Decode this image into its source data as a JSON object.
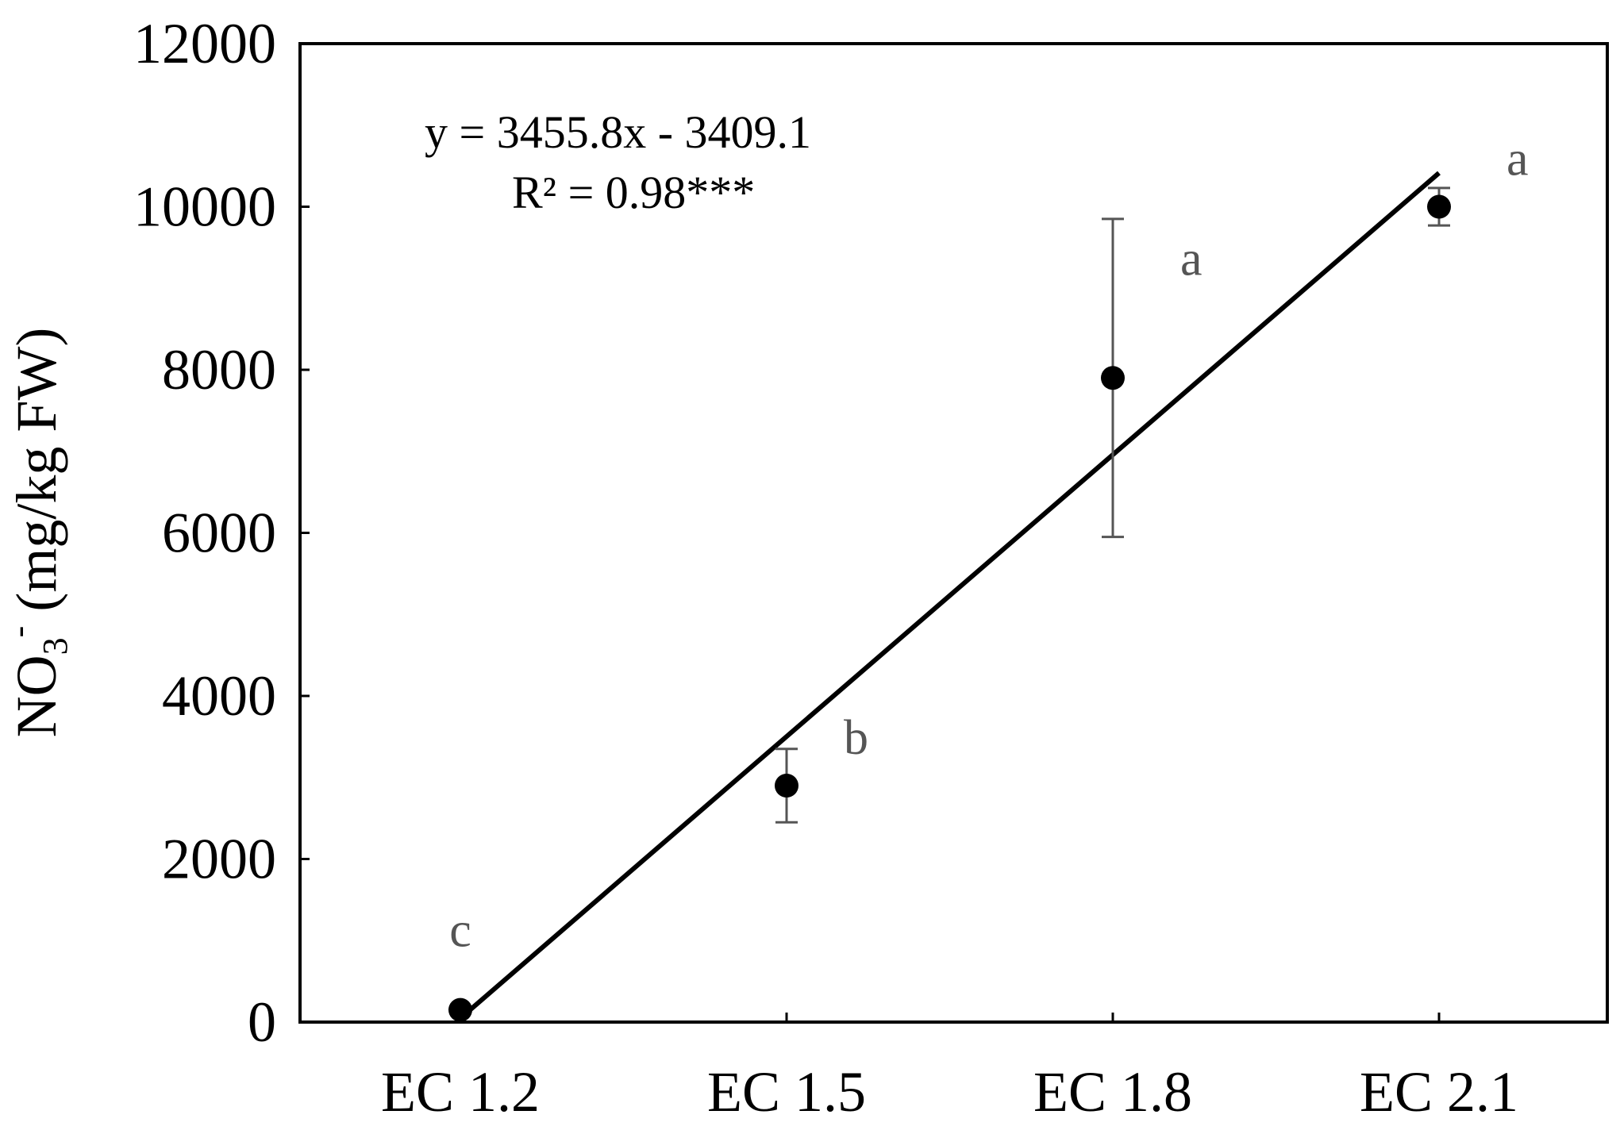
{
  "chart_data": {
    "type": "scatter",
    "categories": [
      "EC 1.2",
      "EC 1.5",
      "EC 1.8",
      "EC 2.1"
    ],
    "x_index": [
      1,
      2,
      3,
      4
    ],
    "values": [
      150,
      2900,
      7900,
      10000
    ],
    "error": [
      0,
      450,
      1950,
      230
    ],
    "significance": [
      "c",
      "b",
      "a",
      "a"
    ],
    "ylabel_main": "NO",
    "ylabel_sub": "3",
    "ylabel_sup": "-",
    "ylabel_rest": " (mg/kg FW)",
    "xlabel": "",
    "ylim": [
      0,
      12000
    ],
    "yticks": [
      0,
      2000,
      4000,
      6000,
      8000,
      10000,
      12000
    ],
    "trendline": {
      "slope": 3455.8,
      "intercept": -3409.1
    },
    "equation": "y = 3455.8x - 3409.1",
    "r_squared": "R² = 0.98***",
    "grid": false
  }
}
